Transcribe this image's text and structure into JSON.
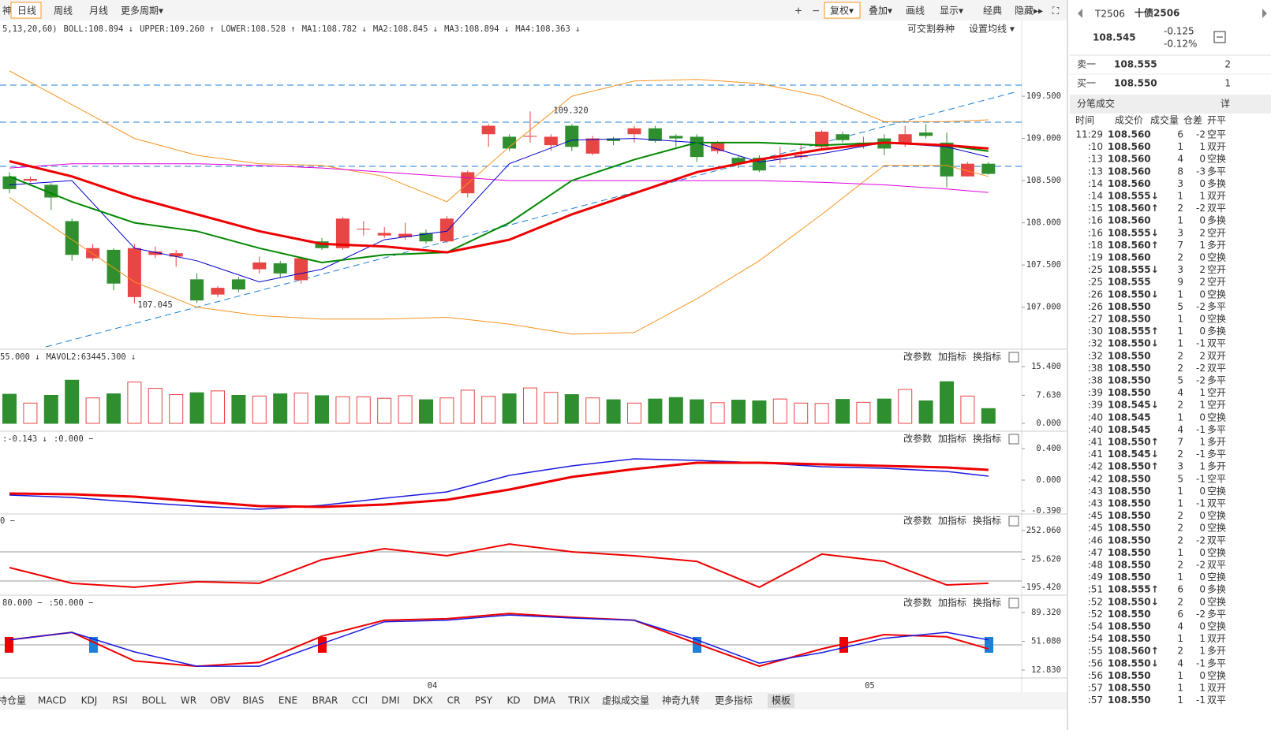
{
  "toolbar": {
    "left": [
      "神",
      "日线",
      "周线",
      "月线",
      "更多周期▾"
    ],
    "right": [
      "+",
      "−",
      "复权▾",
      "叠加▾",
      "画线",
      "显示▾",
      "经典",
      "隐藏▸▸",
      "⛶"
    ]
  },
  "legend": [
    {
      "text": "5,13,20,60)",
      "color": "#333"
    },
    {
      "text": "BOLL:108.894 ↓",
      "color": "#d00"
    },
    {
      "text": "UPPER:109.260 ↑",
      "color": "#f7941d"
    },
    {
      "text": "LOWER:108.528 ↑",
      "color": "#f7941d"
    },
    {
      "text": "MA1:108.782 ↓",
      "color": "#00c"
    },
    {
      "text": "MA2:108.845 ↓",
      "color": "#080"
    },
    {
      "text": "MA3:108.894 ↓",
      "color": "#d00"
    },
    {
      "text": "MA4:108.363 ↓",
      "color": "#d0d"
    }
  ],
  "legend_right": [
    "可交割券种",
    "设置均线 ▾"
  ],
  "panel_buttons": [
    "改参数",
    "加指标",
    "换指标"
  ],
  "annotations": [
    "109.320",
    "107.045"
  ],
  "chart_data": {
    "type": "candlestick",
    "open": [
      108.55,
      108.5,
      108.45,
      108.02,
      107.58,
      107.68,
      107.12,
      107.62,
      107.6,
      107.33,
      107.15,
      107.33,
      107.45,
      107.52,
      107.32,
      107.78,
      107.7,
      107.92,
      107.85,
      107.83,
      107.88,
      107.78,
      108.35,
      109.05,
      109.02,
      109.02,
      108.92,
      109.15,
      108.82,
      109.0,
      109.05,
      109.12,
      109.03,
      109.02,
      108.85,
      108.77,
      108.77,
      108.75,
      108.78,
      108.9,
      109.05,
      108.92,
      109.0,
      108.93,
      109.07,
      108.95,
      108.55,
      108.7
    ],
    "high": [
      108.6,
      108.55,
      108.47,
      108.05,
      107.75,
      107.7,
      107.75,
      107.72,
      107.68,
      107.4,
      107.25,
      107.36,
      107.6,
      107.55,
      107.6,
      107.82,
      108.07,
      108.02,
      107.95,
      108.0,
      107.92,
      108.08,
      108.62,
      109.17,
      109.05,
      109.32,
      109.05,
      109.17,
      109.03,
      109.02,
      109.15,
      109.15,
      109.05,
      109.05,
      108.97,
      108.8,
      108.8,
      108.9,
      108.92,
      109.1,
      109.08,
      109.02,
      109.05,
      109.15,
      109.17,
      109.07,
      108.72,
      108.72
    ],
    "low": [
      108.35,
      108.48,
      108.15,
      107.55,
      107.55,
      107.2,
      107.045,
      107.58,
      107.48,
      107.05,
      107.12,
      107.18,
      107.4,
      107.35,
      107.28,
      107.68,
      107.68,
      107.85,
      107.82,
      107.8,
      107.75,
      107.76,
      108.3,
      108.9,
      108.85,
      108.95,
      108.85,
      108.85,
      108.8,
      108.92,
      108.95,
      108.95,
      108.9,
      108.72,
      108.82,
      108.65,
      108.6,
      108.7,
      108.75,
      108.88,
      108.95,
      108.88,
      108.8,
      108.9,
      109.0,
      108.42,
      108.55,
      108.57
    ],
    "close": [
      108.4,
      108.52,
      108.3,
      107.62,
      107.7,
      107.28,
      107.7,
      107.66,
      107.64,
      107.08,
      107.23,
      107.21,
      107.53,
      107.4,
      107.58,
      107.7,
      108.05,
      107.93,
      107.88,
      107.87,
      107.78,
      108.05,
      108.6,
      109.15,
      108.88,
      109.03,
      109.02,
      108.9,
      109.0,
      108.97,
      109.12,
      108.97,
      109.0,
      108.78,
      108.95,
      108.7,
      108.62,
      108.76,
      108.8,
      109.08,
      108.98,
      108.95,
      108.88,
      109.05,
      109.03,
      108.55,
      108.7,
      108.58
    ],
    "line_x": [
      0,
      3,
      6,
      9,
      12,
      15,
      18,
      21,
      24,
      27,
      30,
      33,
      36,
      39,
      42,
      45,
      47
    ],
    "series": [
      {
        "color": "#f7941d",
        "values": [
          109.8,
          109.4,
          109.0,
          108.8,
          108.7,
          108.68,
          108.55,
          108.25,
          108.9,
          109.5,
          109.68,
          109.7,
          109.65,
          109.5,
          109.2,
          109.2,
          109.22
        ]
      },
      {
        "color": "#f7941d",
        "values": [
          108.3,
          107.8,
          107.3,
          107.0,
          106.9,
          106.86,
          106.86,
          106.88,
          106.8,
          106.68,
          106.7,
          107.1,
          107.55,
          108.1,
          108.68,
          108.68,
          108.55
        ]
      },
      {
        "color": "#d0d",
        "values": [
          108.65,
          108.7,
          108.7,
          108.7,
          108.68,
          108.65,
          108.6,
          108.55,
          108.5,
          108.5,
          108.5,
          108.5,
          108.5,
          108.48,
          108.45,
          108.4,
          108.36
        ]
      },
      {
        "color": "#00c",
        "values": [
          108.45,
          108.5,
          107.7,
          107.55,
          107.3,
          107.45,
          107.8,
          107.9,
          108.7,
          108.98,
          109.0,
          108.95,
          108.72,
          108.82,
          108.95,
          108.9,
          108.78
        ]
      },
      {
        "color": "#080",
        "values": [
          108.55,
          108.25,
          108.0,
          107.9,
          107.7,
          107.53,
          107.62,
          107.65,
          108.0,
          108.5,
          108.75,
          108.95,
          108.95,
          108.92,
          108.95,
          108.92,
          108.85
        ]
      },
      {
        "color": "#e00",
        "values": [
          108.73,
          108.55,
          108.3,
          108.1,
          107.9,
          107.75,
          107.72,
          107.65,
          107.8,
          108.1,
          108.35,
          108.6,
          108.75,
          108.87,
          108.95,
          108.92,
          108.88
        ]
      }
    ],
    "ylim": [
      106.53,
      110.22
    ],
    "yticks": [
      {
        "value": 109.5,
        "label": "109.500"
      },
      {
        "value": 109,
        "label": "109.000"
      },
      {
        "value": 108.5,
        "label": "108.500"
      },
      {
        "value": 108,
        "label": "108.000"
      },
      {
        "value": 107.5,
        "label": "107.500"
      },
      {
        "value": 107,
        "label": "107.000"
      }
    ],
    "x_labels": [
      "04",
      "05"
    ],
    "x_label_index": [
      20,
      41
    ]
  },
  "volume": {
    "type": "bar",
    "legend": [
      {
        "text": "55.000 ↓",
        "color": "#f7941d"
      },
      {
        "text": "MAVOL2:63445.300 ↓",
        "color": "#d0d"
      }
    ],
    "values": [
      7.9,
      5.5,
      7.6,
      11.7,
      6.9,
      8.0,
      11.2,
      9.5,
      7.8,
      8.3,
      8.8,
      7.6,
      7.4,
      8.0,
      8.2,
      7.5,
      7.2,
      7.2,
      6.8,
      7.5,
      6.4,
      6.9,
      9.0,
      7.3,
      8.0,
      9.6,
      8.4,
      7.8,
      6.9,
      6.4,
      5.5,
      6.6,
      7.0,
      6.4,
      5.6,
      6.3,
      6.1,
      6.6,
      5.5,
      5.4,
      6.5,
      5.7,
      6.6,
      9.2,
      6.1,
      11.3,
      7.4,
      4.0
    ],
    "ylim": [
      -1.71,
      19.25
    ],
    "yticks": [
      {
        "value": 15.4,
        "label": "15.400"
      },
      {
        "value": 7.63,
        "label": "7.630"
      },
      {
        "value": 0,
        "label": "0.000"
      }
    ]
  },
  "macd": {
    "type": "line",
    "legend": [
      {
        "text": ":-0.143 ↓",
        "color": "#d0d"
      },
      {
        "text": ":0.000 −",
        "color": "#aaa"
      }
    ],
    "series": [
      {
        "color": "#1a1ae0",
        "values": [
          -0.19,
          -0.22,
          -0.28,
          -0.33,
          -0.37,
          -0.32,
          -0.23,
          -0.15,
          0.06,
          0.18,
          0.27,
          0.25,
          0.22,
          0.17,
          0.15,
          0.11,
          0.05
        ]
      },
      {
        "color": "#e00",
        "values": [
          -0.17,
          -0.18,
          -0.21,
          -0.27,
          -0.33,
          -0.34,
          -0.31,
          -0.25,
          -0.12,
          0.04,
          0.14,
          0.22,
          0.22,
          0.2,
          0.18,
          0.16,
          0.13
        ]
      }
    ],
    "ylim": [
      -0.41,
      0.59
    ],
    "yticks": [
      {
        "value": 0.4,
        "label": "0.400"
      },
      {
        "value": 0,
        "label": "0.000"
      },
      {
        "value": -0.39,
        "label": "-0.390"
      }
    ]
  },
  "cci": {
    "type": "line",
    "legend": [
      {
        "text": "0 −",
        "color": "#333"
      }
    ],
    "series": [
      {
        "color": "#e00",
        "values": [
          -40,
          -164,
          -195,
          -151,
          -164,
          22,
          109,
          53,
          146,
          84,
          53,
          9,
          -195,
          66,
          9,
          -177,
          -164
        ]
      }
    ],
    "ylim": [
      -238.9,
      363.9
    ],
    "yticks": [
      {
        "value": 252.06,
        "label": "252.060"
      },
      {
        "value": 25.62,
        "label": "25.620"
      },
      {
        "value": -195.42,
        "label": "-195.420"
      }
    ]
  },
  "kdj": {
    "type": "line",
    "legend": [
      {
        "text": "80.000 −",
        "color": "#aaa"
      },
      {
        "text": ":50.000 −",
        "color": "#333"
      }
    ],
    "series": [
      {
        "color": "#e00",
        "values": [
          53,
          63,
          25,
          18,
          23,
          58,
          79,
          81,
          88,
          83,
          79,
          48,
          18,
          41,
          60,
          57,
          41
        ]
      },
      {
        "color": "#1a1ae0",
        "values": [
          53,
          63,
          37,
          18,
          18,
          48,
          77,
          79,
          86,
          82,
          79,
          53,
          22,
          36,
          55,
          63,
          53
        ]
      }
    ],
    "ylim": [
      2.35,
      109.2
    ],
    "yticks": [
      {
        "value": 89.32,
        "label": "89.320"
      },
      {
        "value": 51.08,
        "label": "51.080"
      },
      {
        "value": 12.83,
        "label": "12.830"
      }
    ]
  },
  "tabs": [
    "持仓量",
    "MACD",
    "KDJ",
    "RSI",
    "BOLL",
    "WR",
    "OBV",
    "BIAS",
    "ENE",
    "BRAR",
    "CCI",
    "DMI",
    "DKX",
    "CR",
    "PSY",
    "KD",
    "DMA",
    "TRIX",
    "虚拟成交量",
    "神奇九转",
    "更多指标",
    "模板"
  ],
  "quote": {
    "code": "T2506",
    "name": "十债2506",
    "price": "108.545",
    "change": "-0.125",
    "pct": "-0.12%",
    "sell": [
      "卖一",
      "108.555",
      "2"
    ],
    "buy": [
      "买一",
      "108.550",
      "1"
    ],
    "section": "分笔成交",
    "detail": "详",
    "headers": [
      "时间",
      "成交价",
      "成交量",
      "仓差",
      "开平"
    ]
  },
  "trades": [
    [
      "11:29",
      "108.560",
      "6",
      "-2",
      "空平",
      "r"
    ],
    [
      ":10",
      "108.560",
      "1",
      "1",
      "双开",
      "g"
    ],
    [
      ":13",
      "108.560",
      "4",
      "0",
      "空换",
      "g"
    ],
    [
      ":13",
      "108.560",
      "8",
      "-3",
      "多平",
      "g"
    ],
    [
      ":14",
      "108.560",
      "3",
      "0",
      "多换",
      "r"
    ],
    [
      ":14",
      "108.555↓",
      "1",
      "1",
      "双开",
      "g"
    ],
    [
      ":15",
      "108.560↑",
      "2",
      "-2",
      "双平",
      "g"
    ],
    [
      ":16",
      "108.560",
      "1",
      "0",
      "多换",
      "r"
    ],
    [
      ":16",
      "108.555↓",
      "3",
      "2",
      "空开",
      "g"
    ],
    [
      ":18",
      "108.560↑",
      "7",
      "1",
      "多开",
      "r"
    ],
    [
      ":19",
      "108.560",
      "2",
      "0",
      "空换",
      "g"
    ],
    [
      ":25",
      "108.555↓",
      "3",
      "2",
      "空开",
      "g"
    ],
    [
      ":25",
      "108.555",
      "9",
      "2",
      "空开",
      "g"
    ],
    [
      ":26",
      "108.550↓",
      "1",
      "0",
      "空换",
      "g"
    ],
    [
      ":26",
      "108.550",
      "5",
      "-2",
      "多平",
      "g"
    ],
    [
      ":27",
      "108.550",
      "1",
      "0",
      "空换",
      "g"
    ],
    [
      ":30",
      "108.555↑",
      "1",
      "0",
      "多换",
      "r"
    ],
    [
      ":32",
      "108.550↓",
      "1",
      "-1",
      "双平",
      "g"
    ],
    [
      ":32",
      "108.550",
      "2",
      "2",
      "双开",
      "g"
    ],
    [
      ":38",
      "108.550",
      "2",
      "-2",
      "双平",
      "g"
    ],
    [
      ":38",
      "108.550",
      "5",
      "-2",
      "多平",
      "g"
    ],
    [
      ":39",
      "108.550",
      "4",
      "1",
      "空开",
      "g"
    ],
    [
      ":39",
      "108.545↓",
      "2",
      "1",
      "空开",
      "g"
    ],
    [
      ":40",
      "108.545",
      "1",
      "0",
      "空换",
      "g"
    ],
    [
      ":40",
      "108.545",
      "4",
      "-1",
      "多平",
      "g"
    ],
    [
      ":41",
      "108.550↑",
      "7",
      "1",
      "多开",
      "r"
    ],
    [
      ":41",
      "108.545↓",
      "2",
      "-1",
      "多平",
      "g"
    ],
    [
      ":42",
      "108.550↑",
      "3",
      "1",
      "多开",
      "r"
    ],
    [
      ":42",
      "108.550",
      "5",
      "-1",
      "空平",
      "r"
    ],
    [
      ":43",
      "108.550",
      "1",
      "0",
      "空换",
      "g"
    ],
    [
      ":43",
      "108.550",
      "1",
      "-1",
      "双平",
      "g"
    ],
    [
      ":45",
      "108.550",
      "2",
      "0",
      "空换",
      "g"
    ],
    [
      ":45",
      "108.550",
      "2",
      "0",
      "空换",
      "g"
    ],
    [
      ":46",
      "108.550",
      "2",
      "-2",
      "双平",
      "g"
    ],
    [
      ":47",
      "108.550",
      "1",
      "0",
      "空换",
      "g"
    ],
    [
      ":48",
      "108.550",
      "2",
      "-2",
      "双平",
      "g"
    ],
    [
      ":49",
      "108.550",
      "1",
      "0",
      "空换",
      "g"
    ],
    [
      ":51",
      "108.555↑",
      "6",
      "0",
      "多换",
      "r"
    ],
    [
      ":52",
      "108.550↓",
      "2",
      "0",
      "空换",
      "g"
    ],
    [
      ":52",
      "108.550",
      "6",
      "-2",
      "多平",
      "g"
    ],
    [
      ":54",
      "108.550",
      "4",
      "0",
      "空换",
      "g"
    ],
    [
      ":54",
      "108.550",
      "1",
      "1",
      "双开",
      "g"
    ],
    [
      ":55",
      "108.560↑",
      "2",
      "1",
      "多开",
      "r"
    ],
    [
      ":56",
      "108.550↓",
      "4",
      "-1",
      "多平",
      "g"
    ],
    [
      ":56",
      "108.550",
      "1",
      "0",
      "空换",
      "g"
    ],
    [
      ":57",
      "108.550",
      "1",
      "1",
      "双开",
      "g"
    ],
    [
      ":57",
      "108.550",
      "1",
      "-1",
      "双平",
      "g"
    ]
  ]
}
